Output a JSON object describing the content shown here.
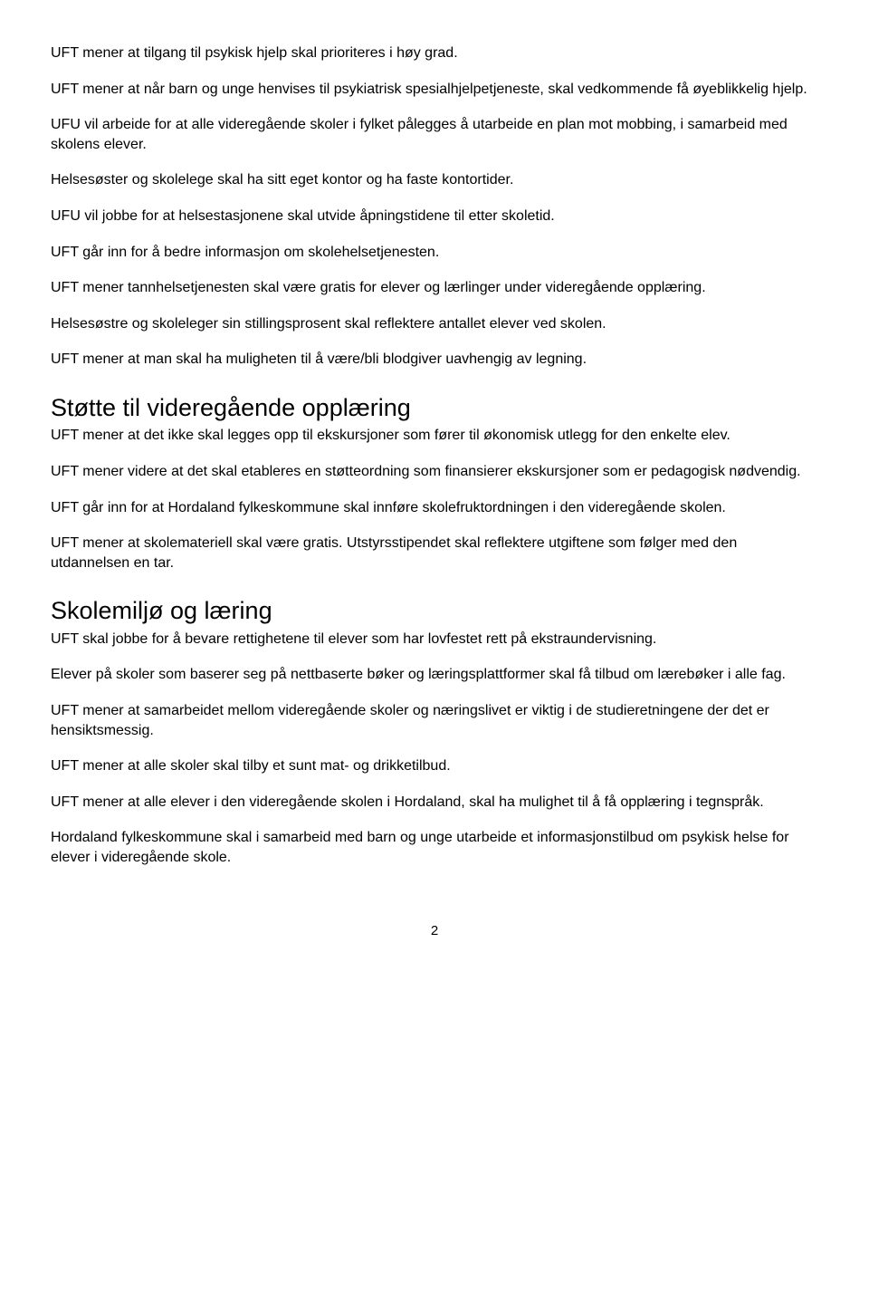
{
  "section1": {
    "p1": "UFT mener at tilgang til psykisk hjelp skal prioriteres i høy grad.",
    "p2": "UFT mener at når barn og unge henvises til psykiatrisk spesialhjelpetjeneste, skal vedkommende få øyeblikkelig hjelp.",
    "p3": "UFU vil arbeide for at alle videregående skoler i fylket pålegges å utarbeide en plan mot mobbing, i samarbeid med skolens elever.",
    "p4": "Helsesøster og skolelege skal ha sitt eget kontor og ha faste kontortider.",
    "p5": "UFU vil jobbe for at helsestasjonene skal utvide åpningstidene til etter skoletid.",
    "p6": "UFT går inn for å bedre informasjon om skolehelsetjenesten.",
    "p7": "UFT mener tannhelsetjenesten skal være gratis for elever og lærlinger under videregående opplæring.",
    "p8": "Helsesøstre og skoleleger sin stillingsprosent skal reflektere antallet elever ved skolen.",
    "p9": "UFT mener at man skal ha muligheten til å være/bli blodgiver uavhengig av legning."
  },
  "section2": {
    "heading": "Støtte til videregående opplæring",
    "p1": "UFT mener at det ikke skal legges opp til ekskursjoner som fører til økonomisk utlegg for den enkelte elev.",
    "p2": "UFT mener videre at det skal etableres en støtteordning som finansierer ekskursjoner som er pedagogisk nødvendig.",
    "p3": "UFT går inn for at Hordaland fylkeskommune skal innføre skolefruktordningen i den videregående skolen.",
    "p4": "UFT mener at skolemateriell skal være gratis. Utstyrsstipendet skal reflektere utgiftene som følger med den utdannelsen en tar."
  },
  "section3": {
    "heading": "Skolemiljø og læring",
    "p1": "UFT skal jobbe for å bevare rettighetene til elever som har lovfestet rett på ekstraundervisning.",
    "p2": "Elever på skoler som baserer seg på nettbaserte bøker og læringsplattformer skal få tilbud om lærebøker i alle fag.",
    "p3": "UFT mener at samarbeidet mellom videregående skoler og næringslivet er viktig i de studieretningene der det er hensiktsmessig.",
    "p4": "UFT mener at alle skoler skal tilby et sunt mat- og drikketilbud.",
    "p5": "UFT mener at alle elever i den videregående skolen i Hordaland, skal ha mulighet til å få opplæring i tegnspråk.",
    "p6": "Hordaland fylkeskommune skal i samarbeid med barn og unge utarbeide et informasjonstilbud om psykisk helse for elever i videregående skole."
  },
  "page_number": "2"
}
